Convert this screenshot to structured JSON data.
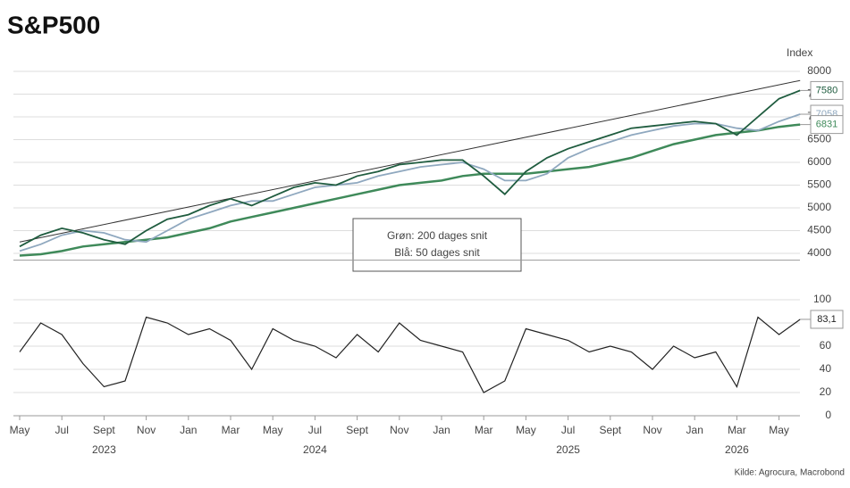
{
  "chart_data": [
    {
      "type": "line",
      "title": "S&P500",
      "y_label": "Index",
      "x": [
        "2023-05",
        "2023-06",
        "2023-07",
        "2023-08",
        "2023-09",
        "2023-10",
        "2023-11",
        "2023-12",
        "2024-01",
        "2024-02",
        "2024-03",
        "2024-04",
        "2024-05",
        "2024-06",
        "2024-07",
        "2024-08",
        "2024-09",
        "2024-10",
        "2024-11",
        "2024-12",
        "2025-01",
        "2025-02",
        "2025-03",
        "2025-04",
        "2025-05",
        "2025-06",
        "2025-07",
        "2025-08",
        "2025-09",
        "2025-10",
        "2025-11",
        "2025-12",
        "2026-01",
        "2026-02",
        "2026-03",
        "2026-04",
        "2026-05",
        "2026-06"
      ],
      "series": [
        {
          "name": "S&P500",
          "color": "#1f5c3f",
          "values": [
            4150,
            4400,
            4550,
            4450,
            4300,
            4200,
            4500,
            4750,
            4850,
            5050,
            5200,
            5050,
            5250,
            5450,
            5550,
            5500,
            5700,
            5800,
            5950,
            6000,
            6050,
            6050,
            5700,
            5300,
            5800,
            6100,
            6300,
            6450,
            6600,
            6750,
            6800,
            6850,
            6900,
            6850,
            6600,
            7000,
            7400,
            7580
          ]
        },
        {
          "name": "Blå: 50 dages snit",
          "color": "#8fa8bf",
          "values": [
            4050,
            4200,
            4400,
            4500,
            4450,
            4300,
            4250,
            4500,
            4750,
            4900,
            5050,
            5150,
            5150,
            5300,
            5450,
            5500,
            5550,
            5700,
            5800,
            5900,
            5950,
            6000,
            5850,
            5600,
            5600,
            5750,
            6100,
            6300,
            6450,
            6600,
            6700,
            6800,
            6850,
            6850,
            6750,
            6700,
            6900,
            7058
          ]
        },
        {
          "name": "Grøn: 200 dages snit",
          "color": "#3f8a5a",
          "values": [
            3950,
            3980,
            4050,
            4150,
            4200,
            4250,
            4300,
            4350,
            4450,
            4550,
            4700,
            4800,
            4900,
            5000,
            5100,
            5200,
            5300,
            5400,
            5500,
            5550,
            5600,
            5700,
            5750,
            5750,
            5750,
            5800,
            5850,
            5900,
            6000,
            6100,
            6250,
            6400,
            6500,
            6600,
            6650,
            6700,
            6780,
            6831
          ]
        }
      ],
      "trendline": {
        "x": [
          "2023-05",
          "2026-06"
        ],
        "values": [
          4250,
          7800
        ],
        "color": "#333333"
      },
      "ylim": [
        3850,
        8000
      ],
      "yticks": [
        4000,
        4500,
        5000,
        5500,
        6000,
        6500,
        7000,
        7500,
        8000
      ],
      "grid": true,
      "annotation": [
        "Grøn: 200 dages snit",
        "Blå: 50 dages snit"
      ]
    },
    {
      "type": "line",
      "x": [
        "2023-05",
        "2023-06",
        "2023-07",
        "2023-08",
        "2023-09",
        "2023-10",
        "2023-11",
        "2023-12",
        "2024-01",
        "2024-02",
        "2024-03",
        "2024-04",
        "2024-05",
        "2024-06",
        "2024-07",
        "2024-08",
        "2024-09",
        "2024-10",
        "2024-11",
        "2024-12",
        "2025-01",
        "2025-02",
        "2025-03",
        "2025-04",
        "2025-05",
        "2025-06",
        "2025-07",
        "2025-08",
        "2025-09",
        "2025-10",
        "2025-11",
        "2025-12",
        "2026-01",
        "2026-02",
        "2026-03",
        "2026-04",
        "2026-05",
        "2026-06"
      ],
      "values": [
        55,
        80,
        70,
        45,
        25,
        30,
        85,
        80,
        70,
        75,
        65,
        40,
        75,
        65,
        60,
        50,
        70,
        55,
        80,
        65,
        60,
        55,
        20,
        30,
        75,
        70,
        65,
        55,
        60,
        55,
        40,
        60,
        50,
        55,
        25,
        85,
        70,
        83.1
      ],
      "value_labels": {
        "37": "83,1"
      },
      "color": "#222222",
      "ylim": [
        0,
        100
      ],
      "yticks": [
        0,
        20,
        40,
        60,
        80,
        100
      ],
      "grid": true,
      "xticks": [
        {
          "value": "2023-05",
          "label": "May"
        },
        {
          "value": "2023-07",
          "label": "Jul"
        },
        {
          "value": "2023-09",
          "label": "Sept"
        },
        {
          "value": "2023-11",
          "label": "Nov"
        },
        {
          "value": "2024-01",
          "label": "Jan"
        },
        {
          "value": "2024-03",
          "label": "Mar"
        },
        {
          "value": "2024-05",
          "label": "May"
        },
        {
          "value": "2024-07",
          "label": "Jul"
        },
        {
          "value": "2024-09",
          "label": "Sept"
        },
        {
          "value": "2024-11",
          "label": "Nov"
        },
        {
          "value": "2025-01",
          "label": "Jan"
        },
        {
          "value": "2025-03",
          "label": "Mar"
        },
        {
          "value": "2025-05",
          "label": "May"
        },
        {
          "value": "2025-07",
          "label": "Jul"
        },
        {
          "value": "2025-09",
          "label": "Sept"
        },
        {
          "value": "2025-11",
          "label": "Nov"
        },
        {
          "value": "2026-01",
          "label": "Jan"
        },
        {
          "value": "2026-03",
          "label": "Mar"
        },
        {
          "value": "2026-05",
          "label": "May"
        }
      ],
      "year_labels": [
        {
          "value": "2023-09",
          "label": "2023"
        },
        {
          "value": "2024-07",
          "label": "2024"
        },
        {
          "value": "2025-07",
          "label": "2025"
        },
        {
          "value": "2026-03",
          "label": "2026"
        }
      ]
    }
  ],
  "source": "Kilde: Agrocura, Macrobond"
}
